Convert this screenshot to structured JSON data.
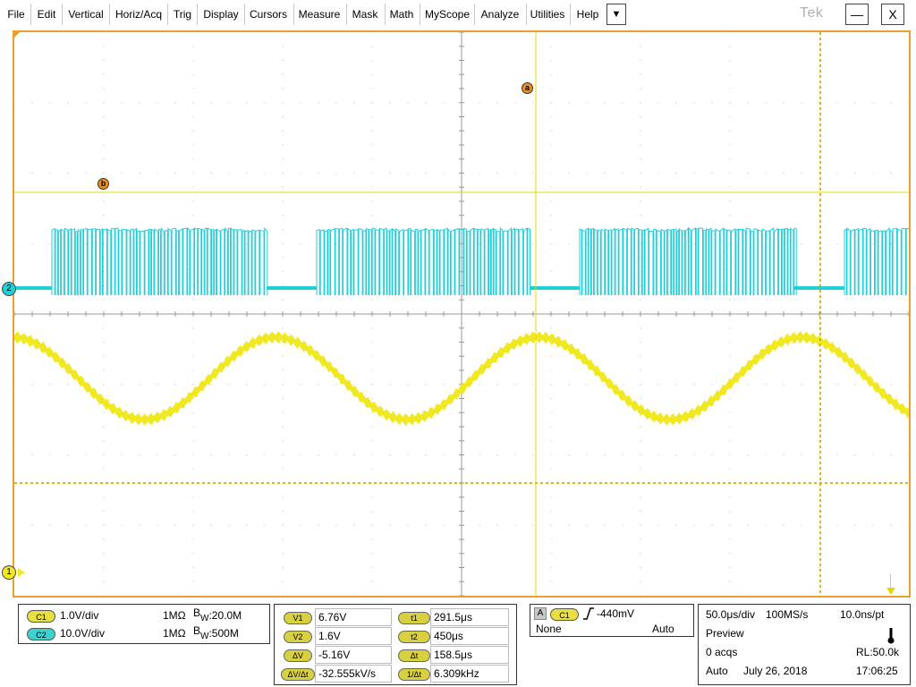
{
  "menu": {
    "items": [
      "File",
      "Edit",
      "Vertical",
      "Horiz/Acq",
      "Trig",
      "Display",
      "Cursors",
      "Measure",
      "Mask",
      "Math",
      "MyScope",
      "Analyze",
      "Utilities",
      "Help"
    ],
    "dropdown_symbol": "▼",
    "logo": "Tek",
    "minimize_symbol": "—",
    "close_symbol": "X"
  },
  "colors": {
    "frame": "#e8a030",
    "ch1": "#f0e820",
    "ch2": "#20d0d8",
    "grid": "#b8b8b8",
    "cursor": "#e8d800"
  },
  "markers": {
    "a": "a",
    "b": "b",
    "ch1_label": "1",
    "ch2_label": "2"
  },
  "channels": [
    {
      "badge": "C1",
      "scale": "1.0V/div",
      "impedance": "1MΩ",
      "bw_prefix": "B",
      "bw_sub": "W",
      "bw_value": ":20.0M"
    },
    {
      "badge": "C2",
      "scale": "10.0V/div",
      "impedance": "1MΩ",
      "bw_prefix": "B",
      "bw_sub": "W",
      "bw_value": ":500M"
    }
  ],
  "cursors": {
    "v1_label": "V1",
    "v1": "6.76V",
    "v2_label": "V2",
    "v2": "1.6V",
    "dv_label": "ΔV",
    "dv": "-5.16V",
    "dvdt_label": "ΔV/Δt",
    "dvdt": "-32.555kV/s",
    "t1_label": "t1",
    "t1": "291.5μs",
    "t2_label": "t2",
    "t2": "450μs",
    "dt_label": "Δt",
    "dt": "158.5μs",
    "inv_dt_label": "1/Δt",
    "inv_dt": "6.309kHz"
  },
  "trigger": {
    "source_label": "A",
    "source_badge": "C1",
    "level": "-440mV",
    "coupling": "None",
    "mode": "Auto"
  },
  "acquisition": {
    "timebase": "50.0μs/div",
    "sample_rate": "100MS/s",
    "resolution": "10.0ns/pt",
    "state": "Preview",
    "acqs": "0 acqs",
    "record_length": "RL:50.0k",
    "run_mode": "Auto",
    "date": "July 26, 2018",
    "time": "17:06:25"
  }
}
